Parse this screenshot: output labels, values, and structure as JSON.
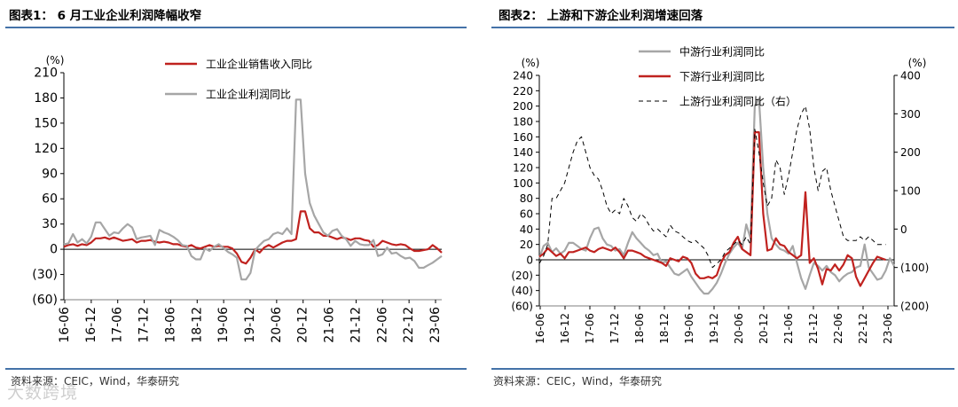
{
  "watermark": "大数跨境",
  "charts": [
    {
      "title": "图表1： 6 月工业企业利润降幅收窄",
      "source": "资料来源：CEIC，Wind，华泰研究"
    },
    {
      "title": "图表2： 上游和下游企业利润增速回落",
      "source": "资料来源：CEIC，Wind，华泰研究"
    }
  ],
  "chart_data": [
    {
      "type": "line",
      "y_unit": "(%)",
      "ylim": [
        -60,
        210
      ],
      "yticks": [
        "210",
        "180",
        "150",
        "120",
        "90",
        "60",
        "30",
        "0",
        "(30)",
        "(60)"
      ],
      "xticks": [
        "16-06",
        "16-12",
        "17-06",
        "17-12",
        "18-06",
        "18-12",
        "19-06",
        "19-12",
        "20-06",
        "20-12",
        "21-06",
        "21-12",
        "22-06",
        "22-12",
        "23-06"
      ],
      "legend_position": "top",
      "series": [
        {
          "name": "工业企业销售收入同比",
          "color": "#c0221f",
          "values": [
            3,
            5,
            6,
            4,
            6,
            5,
            8,
            13,
            13,
            14,
            12,
            14,
            12,
            10,
            11,
            12,
            8,
            10,
            10,
            11,
            9,
            8,
            9,
            8,
            6,
            6,
            4,
            3,
            5,
            2,
            1,
            3,
            5,
            3,
            4,
            3,
            3,
            1,
            -5,
            -15,
            -17,
            -10,
            0,
            -4,
            2,
            5,
            2,
            5,
            8,
            10,
            10,
            12,
            45,
            45,
            25,
            20,
            20,
            16,
            16,
            14,
            12,
            14,
            13,
            11,
            13,
            13,
            11,
            10,
            3,
            5,
            10,
            8,
            6,
            5,
            6,
            5,
            1,
            -2,
            -2,
            -1,
            0,
            5,
            1,
            -4
          ]
        },
        {
          "name": "工业企业利润同比",
          "color": "#a6a6a6",
          "values": [
            6,
            7,
            18,
            8,
            12,
            7,
            15,
            32,
            32,
            24,
            16,
            20,
            19,
            25,
            30,
            26,
            12,
            14,
            15,
            16,
            5,
            23,
            20,
            18,
            15,
            11,
            5,
            4,
            -8,
            -12,
            -12,
            1,
            -2,
            3,
            6,
            2,
            -3,
            -6,
            -10,
            -36,
            -36,
            -28,
            -1,
            5,
            10,
            12,
            18,
            20,
            18,
            25,
            18,
            178,
            178,
            90,
            55,
            40,
            30,
            20,
            16,
            22,
            24,
            16,
            12,
            4,
            10,
            6,
            5,
            5,
            11,
            -8,
            -6,
            2,
            -5,
            -4,
            -8,
            -11,
            -10,
            -14,
            -22,
            -22,
            -19,
            -16,
            -12,
            -8
          ]
        }
      ]
    },
    {
      "type": "line",
      "y_unit_left": "(%)",
      "y_unit_right": "(%)",
      "ylim": [
        -60,
        240
      ],
      "ylim_right": [
        -200,
        400
      ],
      "yticks": [
        "240",
        "220",
        "200",
        "180",
        "160",
        "140",
        "120",
        "100",
        "80",
        "60",
        "40",
        "20",
        "0",
        "(20)",
        "(40)",
        "(60)"
      ],
      "yticks_right": [
        "400",
        "300",
        "200",
        "100",
        "0",
        "(100)",
        "(200)"
      ],
      "xticks": [
        "16-06",
        "16-12",
        "17-06",
        "17-12",
        "18-06",
        "18-12",
        "19-06",
        "19-12",
        "20-06",
        "20-12",
        "21-06",
        "21-12",
        "22-06",
        "22-12",
        "23-06"
      ],
      "legend_position": "top",
      "series": [
        {
          "name": "中游行业利润同比",
          "color": "#a6a6a6",
          "axis": "left",
          "values": [
            2,
            18,
            22,
            10,
            15,
            8,
            12,
            22,
            22,
            18,
            14,
            12,
            28,
            40,
            42,
            28,
            20,
            18,
            12,
            14,
            6,
            22,
            36,
            28,
            22,
            16,
            12,
            6,
            8,
            -4,
            -2,
            -10,
            -18,
            -20,
            -16,
            -12,
            -22,
            -30,
            -38,
            -44,
            -44,
            -38,
            -30,
            -18,
            -4,
            8,
            16,
            22,
            14,
            46,
            28,
            200,
            210,
            120,
            60,
            28,
            20,
            14,
            12,
            8,
            18,
            -4,
            -24,
            -38,
            -20,
            -4,
            -8,
            -14,
            -8,
            -16,
            -20,
            -28,
            -22,
            -18,
            -16,
            -10,
            -8,
            20,
            -10,
            -18,
            -26,
            -24,
            -14,
            2,
            -8
          ]
        },
        {
          "name": "下游行业利润同比",
          "color": "#c0221f",
          "axis": "left",
          "values": [
            4,
            8,
            15,
            10,
            5,
            8,
            2,
            10,
            10,
            12,
            14,
            16,
            12,
            10,
            14,
            16,
            14,
            12,
            16,
            10,
            2,
            12,
            12,
            10,
            8,
            4,
            2,
            0,
            -2,
            -4,
            -8,
            2,
            0,
            -2,
            4,
            2,
            -4,
            -18,
            -24,
            -24,
            -22,
            -24,
            -20,
            -4,
            6,
            10,
            22,
            30,
            14,
            10,
            6,
            166,
            166,
            60,
            12,
            14,
            28,
            20,
            18,
            10,
            6,
            2,
            6,
            88,
            -4,
            2,
            -12,
            -32,
            -12,
            -14,
            -6,
            -14,
            -6,
            6,
            2,
            -22,
            -34,
            -24,
            -14,
            -4,
            4,
            2,
            0
          ]
        },
        {
          "name": "上游行业利润同比（右）",
          "color": "#000000",
          "axis": "right",
          "dash": true,
          "values": [
            -90,
            -70,
            -40,
            80,
            80,
            100,
            120,
            160,
            200,
            230,
            240,
            200,
            160,
            140,
            130,
            100,
            60,
            40,
            50,
            40,
            80,
            60,
            30,
            20,
            40,
            30,
            10,
            -5,
            0,
            -10,
            -20,
            10,
            -5,
            -10,
            -20,
            -30,
            -35,
            -30,
            -40,
            -50,
            -70,
            -100,
            -90,
            -80,
            -60,
            -50,
            -40,
            -30,
            -40,
            -20,
            -40,
            260,
            200,
            120,
            60,
            80,
            180,
            160,
            90,
            140,
            200,
            260,
            300,
            320,
            260,
            160,
            100,
            150,
            160,
            100,
            60,
            20,
            -20,
            -30,
            -30,
            -30,
            -20,
            -30,
            -20,
            -30,
            -40,
            -40,
            -40
          ]
        }
      ]
    }
  ]
}
